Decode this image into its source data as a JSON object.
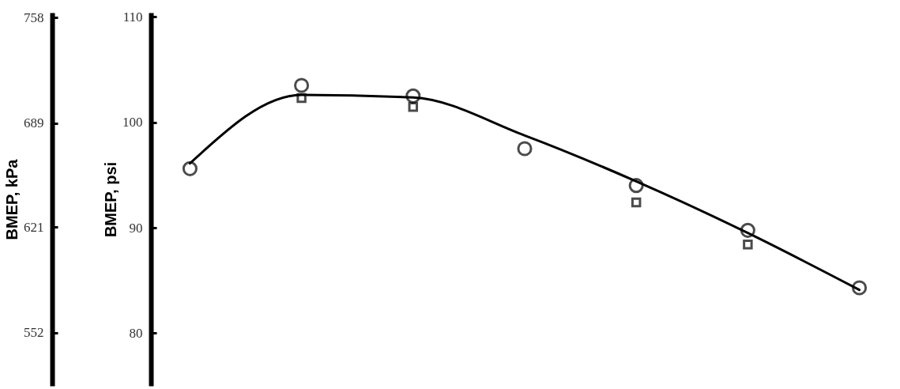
{
  "chart_data": {
    "type": "scatter",
    "xlabel": null,
    "ylabel": "BMEP, psi",
    "y2label": "BMEP, kPa",
    "categories": [
      null,
      null,
      null,
      null,
      null,
      null,
      null
    ],
    "ylim": [
      75,
      110.4
    ],
    "yticks": [
      80,
      90,
      100,
      110
    ],
    "y2lim": [
      517.1,
      761.2
    ],
    "y2ticks": [
      552,
      621,
      689,
      758
    ],
    "grid": false,
    "series": [
      {
        "type": "line",
        "color": "#000000",
        "marker": "none",
        "line_style": "solid",
        "values": [
          96.1,
          102.6,
          102.35,
          98.75,
          94.4,
          89.5,
          84.1
        ]
      },
      {
        "color": "#000000",
        "marker": "circle",
        "values": [
          95.6,
          103.5,
          102.5,
          97.5,
          94.0,
          89.75,
          84.3
        ]
      },
      {
        "color": "#000000",
        "marker": "square",
        "values": [
          null,
          102.3,
          101.45,
          null,
          92.4,
          88.4,
          null
        ]
      }
    ]
  }
}
